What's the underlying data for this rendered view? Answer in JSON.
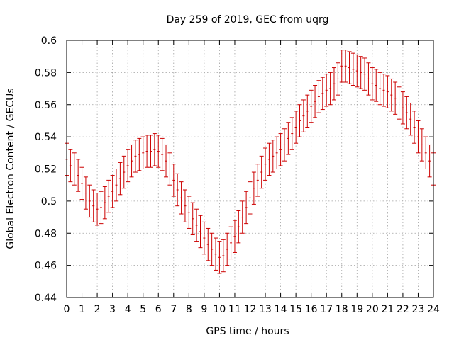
{
  "chart_data": {
    "type": "scatter",
    "title": "Day 259 of 2019, GEC from uqrg",
    "xlabel": "GPS time / hours",
    "ylabel": "Global Electron Content / GECUs",
    "xlim": [
      0,
      24
    ],
    "ylim": [
      0.44,
      0.6
    ],
    "xticks": [
      "0",
      "1",
      "2",
      "3",
      "4",
      "5",
      "6",
      "7",
      "8",
      "9",
      "10",
      "11",
      "12",
      "13",
      "14",
      "15",
      "16",
      "17",
      "18",
      "19",
      "20",
      "21",
      "22",
      "23",
      "24"
    ],
    "yticks": [
      "0.44",
      "0.46",
      "0.48",
      "0.5",
      "0.52",
      "0.54",
      "0.56",
      "0.58",
      "0.6"
    ],
    "grid": true,
    "series_color": "#cc0000",
    "series": [
      {
        "name": "GEC",
        "style": "errorbars",
        "x": [
          0,
          0.25,
          0.5,
          0.75,
          1,
          1.25,
          1.5,
          1.75,
          2,
          2.25,
          2.5,
          2.75,
          3,
          3.25,
          3.5,
          3.75,
          4,
          4.25,
          4.5,
          4.75,
          5,
          5.25,
          5.5,
          5.75,
          6,
          6.25,
          6.5,
          6.75,
          7,
          7.25,
          7.5,
          7.75,
          8,
          8.25,
          8.5,
          8.75,
          9,
          9.25,
          9.5,
          9.75,
          10,
          10.25,
          10.5,
          10.75,
          11,
          11.25,
          11.5,
          11.75,
          12,
          12.25,
          12.5,
          12.75,
          13,
          13.25,
          13.5,
          13.75,
          14,
          14.25,
          14.5,
          14.75,
          15,
          15.25,
          15.5,
          15.75,
          16,
          16.25,
          16.5,
          16.75,
          17,
          17.25,
          17.5,
          17.75,
          18,
          18.25,
          18.5,
          18.75,
          19,
          19.25,
          19.5,
          19.75,
          20,
          20.25,
          20.5,
          20.75,
          21,
          21.25,
          21.5,
          21.75,
          22,
          22.25,
          22.5,
          22.75,
          23,
          23.25,
          23.5,
          23.75,
          24
        ],
        "y": [
          0.526,
          0.522,
          0.52,
          0.516,
          0.511,
          0.505,
          0.5,
          0.497,
          0.495,
          0.496,
          0.499,
          0.503,
          0.506,
          0.51,
          0.514,
          0.518,
          0.522,
          0.525,
          0.528,
          0.529,
          0.53,
          0.531,
          0.531,
          0.532,
          0.531,
          0.529,
          0.525,
          0.52,
          0.513,
          0.507,
          0.502,
          0.497,
          0.493,
          0.489,
          0.485,
          0.481,
          0.477,
          0.473,
          0.47,
          0.467,
          0.465,
          0.466,
          0.47,
          0.474,
          0.478,
          0.484,
          0.49,
          0.496,
          0.502,
          0.508,
          0.513,
          0.518,
          0.523,
          0.526,
          0.528,
          0.53,
          0.532,
          0.535,
          0.539,
          0.542,
          0.546,
          0.55,
          0.553,
          0.556,
          0.559,
          0.562,
          0.565,
          0.567,
          0.569,
          0.57,
          0.573,
          0.576,
          0.584,
          0.584,
          0.583,
          0.582,
          0.581,
          0.58,
          0.579,
          0.576,
          0.573,
          0.572,
          0.57,
          0.569,
          0.568,
          0.566,
          0.564,
          0.561,
          0.558,
          0.555,
          0.551,
          0.546,
          0.54,
          0.535,
          0.53,
          0.525,
          0.52
        ],
        "err": 0.01
      }
    ]
  }
}
